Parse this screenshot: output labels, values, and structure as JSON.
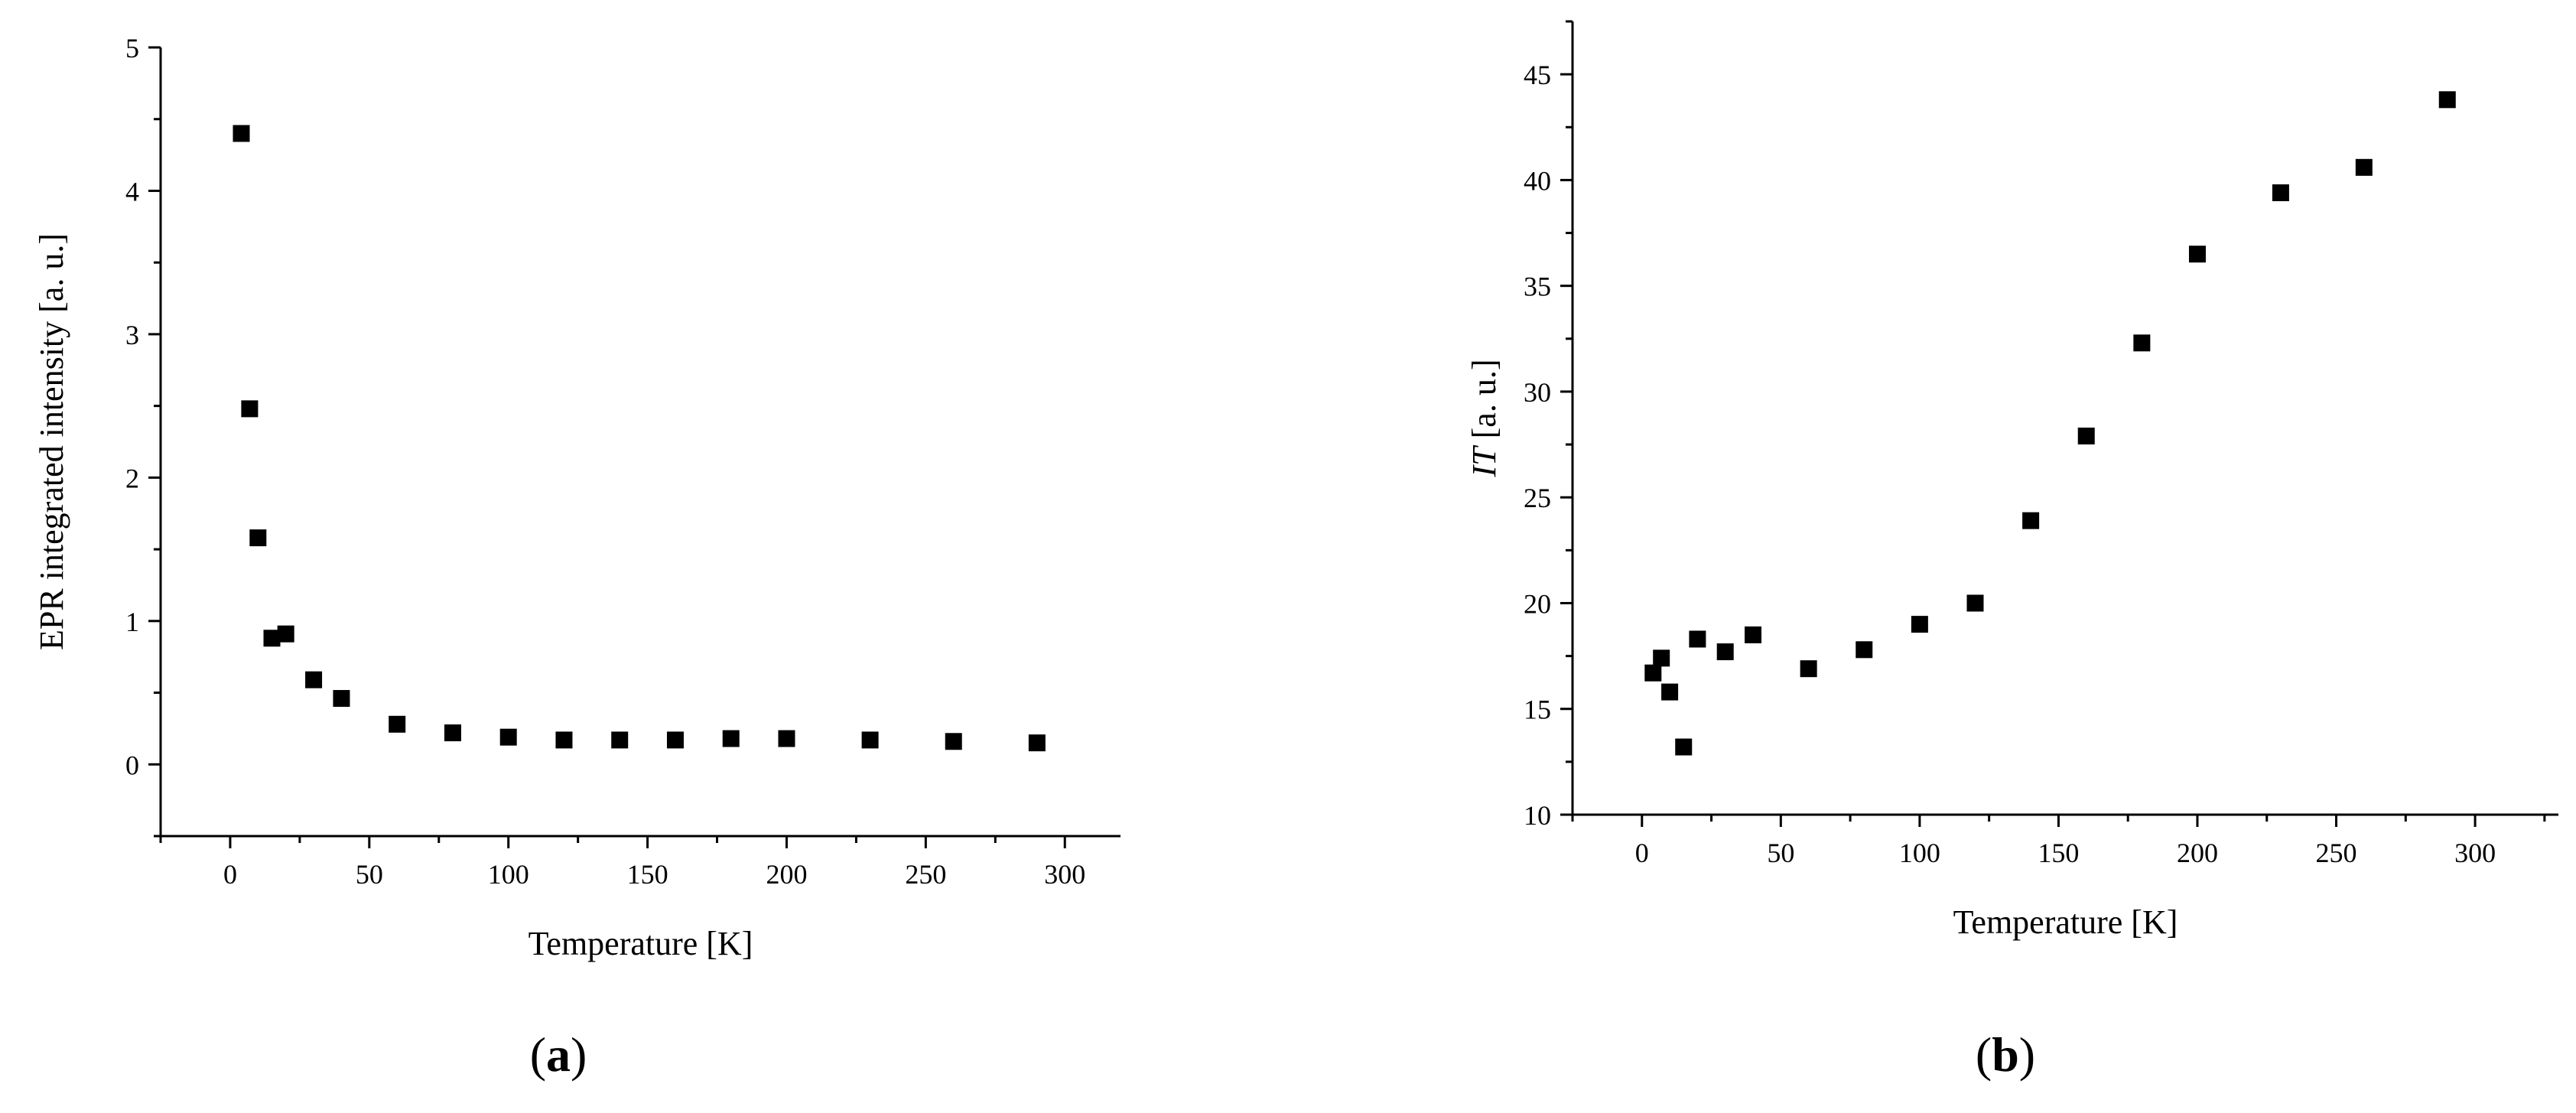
{
  "chart_data": [
    {
      "type": "scatter",
      "panel_label": "a",
      "xlabel": "Temperature [K]",
      "ylabel": "EPR integrated intensity [a. u.]",
      "xlim": [
        -25,
        320
      ],
      "ylim": [
        -0.5,
        5
      ],
      "xticks": [
        0,
        50,
        100,
        150,
        200,
        250,
        300
      ],
      "yticks": [
        0,
        1,
        2,
        3,
        4,
        5
      ],
      "marker": "square",
      "marker_color": "#000000",
      "x": [
        4,
        7,
        10,
        15,
        20,
        30,
        40,
        60,
        80,
        100,
        120,
        140,
        160,
        180,
        200,
        230,
        260,
        290
      ],
      "y": [
        4.4,
        2.48,
        1.58,
        0.88,
        0.91,
        0.59,
        0.46,
        0.28,
        0.22,
        0.19,
        0.17,
        0.17,
        0.17,
        0.18,
        0.18,
        0.17,
        0.16,
        0.15
      ]
    },
    {
      "type": "scatter",
      "panel_label": "b",
      "xlabel": "Temperature [K]",
      "ylabel_italic": "IT",
      "ylabel_rest": " [a. u.]",
      "xlim": [
        -25,
        330
      ],
      "ylim": [
        10,
        47.5
      ],
      "xticks": [
        0,
        50,
        100,
        150,
        200,
        250,
        300
      ],
      "yticks": [
        10,
        15,
        20,
        25,
        30,
        35,
        40,
        45
      ],
      "marker": "square",
      "marker_color": "#000000",
      "x": [
        4,
        7,
        10,
        15,
        20,
        30,
        40,
        60,
        80,
        100,
        120,
        140,
        160,
        180,
        200,
        230,
        260,
        290
      ],
      "y": [
        16.7,
        17.4,
        15.8,
        13.2,
        18.3,
        17.7,
        18.5,
        16.9,
        17.8,
        19.0,
        20.0,
        23.9,
        27.9,
        32.3,
        36.5,
        39.4,
        40.6,
        43.8
      ]
    }
  ]
}
